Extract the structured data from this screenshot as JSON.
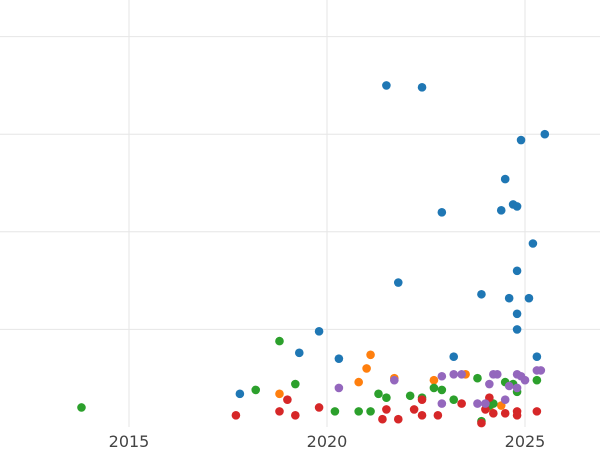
{
  "chart_data": {
    "type": "scatter",
    "title": "",
    "xlabel": "",
    "ylabel": "",
    "xlim": [
      2012.5,
      2026.8
    ],
    "ylim": [
      0,
      22
    ],
    "x_ticks": [
      2015,
      2020,
      2025
    ],
    "x_tick_labels": [
      "2015",
      "2020",
      "2025"
    ],
    "y_gridlines": [
      5,
      10,
      15,
      20
    ],
    "grid": "on",
    "legend": "none",
    "colors": {
      "blue": "#1f77b4",
      "orange": "#ff7f0e",
      "green": "#2ca02c",
      "red": "#d62728",
      "purple": "#9467bd"
    },
    "series": [
      {
        "color": "#1f77b4",
        "points": [
          {
            "x": 2017.8,
            "y": 1.7
          },
          {
            "x": 2019.3,
            "y": 3.8
          },
          {
            "x": 2019.8,
            "y": 4.9
          },
          {
            "x": 2020.3,
            "y": 3.5
          },
          {
            "x": 2021.5,
            "y": 17.5
          },
          {
            "x": 2021.8,
            "y": 7.4
          },
          {
            "x": 2022.4,
            "y": 17.4
          },
          {
            "x": 2022.9,
            "y": 11.0
          },
          {
            "x": 2023.2,
            "y": 3.6
          },
          {
            "x": 2023.9,
            "y": 6.8
          },
          {
            "x": 2024.4,
            "y": 11.1
          },
          {
            "x": 2024.5,
            "y": 12.7
          },
          {
            "x": 2024.6,
            "y": 6.6
          },
          {
            "x": 2024.7,
            "y": 11.4
          },
          {
            "x": 2024.8,
            "y": 11.3
          },
          {
            "x": 2024.8,
            "y": 8.0
          },
          {
            "x": 2024.8,
            "y": 5.8
          },
          {
            "x": 2024.8,
            "y": 5.0
          },
          {
            "x": 2024.9,
            "y": 14.7
          },
          {
            "x": 2025.1,
            "y": 6.6
          },
          {
            "x": 2025.2,
            "y": 9.4
          },
          {
            "x": 2025.3,
            "y": 3.6
          },
          {
            "x": 2025.5,
            "y": 15.0
          }
        ]
      },
      {
        "color": "#ff7f0e",
        "points": [
          {
            "x": 2018.8,
            "y": 1.7
          },
          {
            "x": 2020.8,
            "y": 2.3
          },
          {
            "x": 2021.0,
            "y": 3.0
          },
          {
            "x": 2021.1,
            "y": 3.7
          },
          {
            "x": 2021.7,
            "y": 2.5
          },
          {
            "x": 2022.7,
            "y": 2.4
          },
          {
            "x": 2023.5,
            "y": 2.7
          },
          {
            "x": 2024.1,
            "y": 1.0
          },
          {
            "x": 2024.4,
            "y": 1.1
          }
        ]
      },
      {
        "color": "#2ca02c",
        "points": [
          {
            "x": 2013.8,
            "y": 1.0
          },
          {
            "x": 2018.2,
            "y": 1.9
          },
          {
            "x": 2018.8,
            "y": 4.4
          },
          {
            "x": 2019.2,
            "y": 2.2
          },
          {
            "x": 2020.2,
            "y": 0.8
          },
          {
            "x": 2020.8,
            "y": 0.8
          },
          {
            "x": 2021.1,
            "y": 0.8
          },
          {
            "x": 2021.3,
            "y": 1.7
          },
          {
            "x": 2021.5,
            "y": 1.5
          },
          {
            "x": 2022.1,
            "y": 1.6
          },
          {
            "x": 2022.4,
            "y": 1.5
          },
          {
            "x": 2022.7,
            "y": 2.0
          },
          {
            "x": 2022.9,
            "y": 1.9
          },
          {
            "x": 2023.2,
            "y": 1.4
          },
          {
            "x": 2023.8,
            "y": 2.5
          },
          {
            "x": 2023.9,
            "y": 0.3
          },
          {
            "x": 2024.1,
            "y": 1.1
          },
          {
            "x": 2024.2,
            "y": 1.2
          },
          {
            "x": 2024.5,
            "y": 2.3
          },
          {
            "x": 2024.7,
            "y": 2.2
          },
          {
            "x": 2024.8,
            "y": 1.8
          },
          {
            "x": 2025.3,
            "y": 2.4
          }
        ]
      },
      {
        "color": "#d62728",
        "points": [
          {
            "x": 2017.7,
            "y": 0.6
          },
          {
            "x": 2018.8,
            "y": 0.8
          },
          {
            "x": 2019.0,
            "y": 1.4
          },
          {
            "x": 2019.2,
            "y": 0.6
          },
          {
            "x": 2019.8,
            "y": 1.0
          },
          {
            "x": 2021.4,
            "y": 0.4
          },
          {
            "x": 2021.5,
            "y": 0.9
          },
          {
            "x": 2021.8,
            "y": 0.4
          },
          {
            "x": 2022.2,
            "y": 0.9
          },
          {
            "x": 2022.4,
            "y": 1.4
          },
          {
            "x": 2022.4,
            "y": 0.6
          },
          {
            "x": 2022.8,
            "y": 0.6
          },
          {
            "x": 2023.4,
            "y": 1.2
          },
          {
            "x": 2023.9,
            "y": 0.2
          },
          {
            "x": 2024.0,
            "y": 0.9
          },
          {
            "x": 2024.1,
            "y": 1.5
          },
          {
            "x": 2024.2,
            "y": 0.7
          },
          {
            "x": 2024.5,
            "y": 0.7
          },
          {
            "x": 2024.8,
            "y": 0.8
          },
          {
            "x": 2024.8,
            "y": 0.6
          },
          {
            "x": 2025.3,
            "y": 0.8
          }
        ]
      },
      {
        "color": "#9467bd",
        "points": [
          {
            "x": 2020.3,
            "y": 2.0
          },
          {
            "x": 2021.7,
            "y": 2.4
          },
          {
            "x": 2022.9,
            "y": 2.6
          },
          {
            "x": 2022.9,
            "y": 1.2
          },
          {
            "x": 2023.2,
            "y": 2.7
          },
          {
            "x": 2023.4,
            "y": 2.7
          },
          {
            "x": 2023.8,
            "y": 1.2
          },
          {
            "x": 2024.0,
            "y": 1.2
          },
          {
            "x": 2024.1,
            "y": 2.2
          },
          {
            "x": 2024.2,
            "y": 2.7
          },
          {
            "x": 2024.3,
            "y": 2.7
          },
          {
            "x": 2024.5,
            "y": 1.4
          },
          {
            "x": 2024.6,
            "y": 2.1
          },
          {
            "x": 2024.8,
            "y": 2.0
          },
          {
            "x": 2024.8,
            "y": 2.7
          },
          {
            "x": 2024.9,
            "y": 2.6
          },
          {
            "x": 2025.0,
            "y": 2.4
          },
          {
            "x": 2025.3,
            "y": 2.9
          },
          {
            "x": 2025.4,
            "y": 2.9
          }
        ]
      }
    ]
  }
}
